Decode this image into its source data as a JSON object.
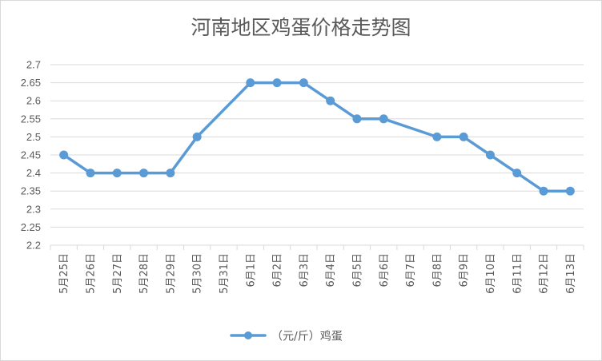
{
  "chart_data": {
    "type": "line",
    "title": "河南地区鸡蛋价格走势图",
    "categories": [
      "5月25日",
      "5月26日",
      "5月27日",
      "5月28日",
      "5月29日",
      "5月30日",
      "5月31日",
      "6月1日",
      "6月2日",
      "6月3日",
      "6月4日",
      "6月5日",
      "6月6日",
      "6月7日",
      "6月8日",
      "6月9日",
      "6月10日",
      "6月11日",
      "6月12日",
      "6月13日"
    ],
    "series": [
      {
        "name": "（元/斤）鸡蛋",
        "color": "#5b9bd5",
        "values": [
          2.45,
          2.4,
          2.4,
          2.4,
          2.4,
          2.5,
          null,
          2.65,
          2.65,
          2.65,
          2.6,
          2.55,
          2.55,
          null,
          2.5,
          2.5,
          2.45,
          2.4,
          2.35,
          2.35
        ]
      }
    ],
    "ylim": [
      2.2,
      2.7
    ],
    "yticks": [
      "2.2",
      "2.25",
      "2.3",
      "2.35",
      "2.4",
      "2.45",
      "2.5",
      "2.55",
      "2.6",
      "2.65",
      "2.7"
    ],
    "xlabel": "",
    "ylabel": "",
    "grid": true,
    "legend_position": "bottom",
    "gap_handling": "connect"
  }
}
